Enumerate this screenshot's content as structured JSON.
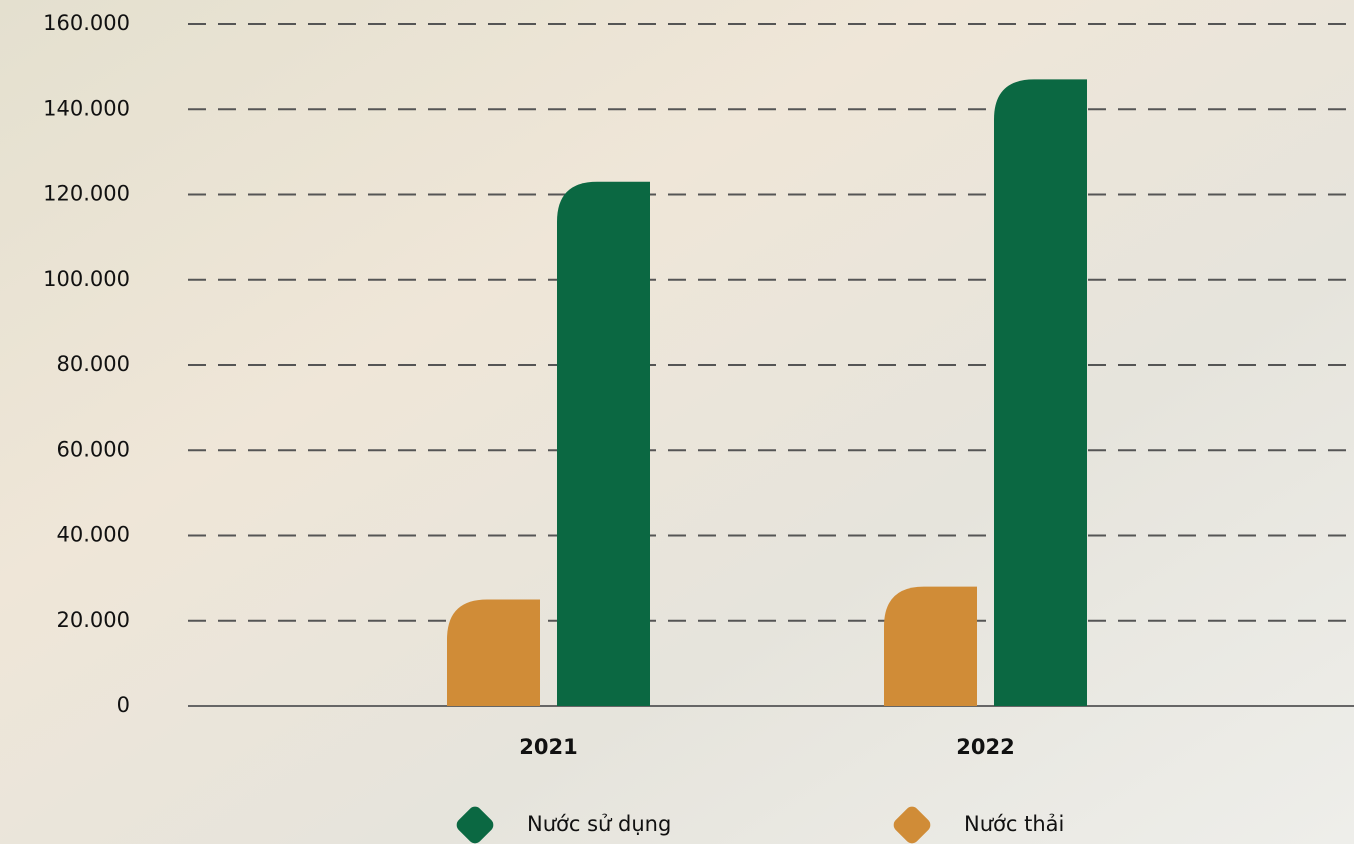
{
  "chart_data": {
    "type": "bar",
    "categories": [
      "2021",
      "2022"
    ],
    "series": [
      {
        "name": "Nước thải",
        "color": "#d08c37",
        "values": [
          25000,
          28000
        ]
      },
      {
        "name": "Nước sử dụng",
        "color": "#0b6842",
        "values": [
          123000,
          147000
        ]
      }
    ],
    "ylim": [
      0,
      160000
    ],
    "yticks": [
      0,
      {
        "value": 20000,
        "label": "20.000"
      },
      {
        "value": 40000,
        "label": "40.000"
      },
      {
        "value": 60000,
        "label": "60.000"
      },
      {
        "value": 80000,
        "label": "80.000"
      },
      {
        "value": 100000,
        "label": "100.000"
      },
      {
        "value": 120000,
        "label": "120.000"
      },
      {
        "value": 140000,
        "label": "140.000"
      },
      {
        "value": 160000,
        "label": "160.000"
      }
    ],
    "grid": true
  }
}
